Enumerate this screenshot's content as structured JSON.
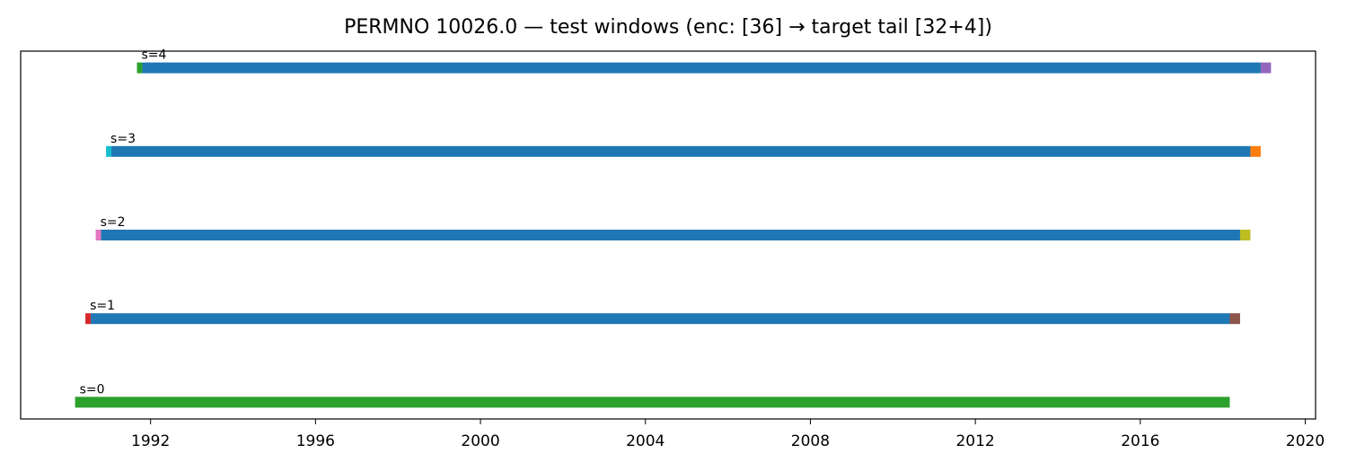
{
  "chart_data": {
    "type": "bar",
    "title": "PERMNO 10026.0 — test windows (enc: [36] → target tail [32+4])",
    "xlabel": "",
    "ylabel": "",
    "x_is_date": true,
    "xlim": [
      1988.85,
      2020.25
    ],
    "ylim": [
      -0.2,
      4.2
    ],
    "xticks": [
      1992,
      1996,
      2000,
      2004,
      2008,
      2012,
      2016,
      2020
    ],
    "grid": false,
    "windows": [
      {
        "label": "s=0",
        "y": 0,
        "enc_start": 1990.17,
        "target_start": 1990.17,
        "tail_start": 1990.17,
        "end": 2018.17,
        "head_color": "#1f77b4",
        "body_color": "#1f77b4",
        "tail_color": "#2ca02c"
      },
      {
        "label": "s=1",
        "y": 1,
        "enc_start": 1990.42,
        "target_start": 1990.55,
        "tail_start": 2018.17,
        "end": 2018.42,
        "head_color": "#d62728",
        "body_color": "#1f77b4",
        "tail_color": "#8c564b"
      },
      {
        "label": "s=2",
        "y": 2,
        "enc_start": 1990.67,
        "target_start": 1990.8,
        "tail_start": 2018.42,
        "end": 2018.67,
        "head_color": "#e377c2",
        "body_color": "#1f77b4",
        "tail_color": "#bcbd22"
      },
      {
        "label": "s=3",
        "y": 3,
        "enc_start": 1990.92,
        "target_start": 1991.05,
        "tail_start": 2018.67,
        "end": 2018.92,
        "head_color": "#17becf",
        "body_color": "#1f77b4",
        "tail_color": "#ff7f0e"
      },
      {
        "label": "s=4",
        "y": 4,
        "enc_start": 1991.67,
        "target_start": 1991.8,
        "tail_start": 2018.92,
        "end": 2019.17,
        "head_color": "#2ca02c",
        "body_color": "#1f77b4",
        "tail_color": "#9467bd"
      }
    ]
  }
}
